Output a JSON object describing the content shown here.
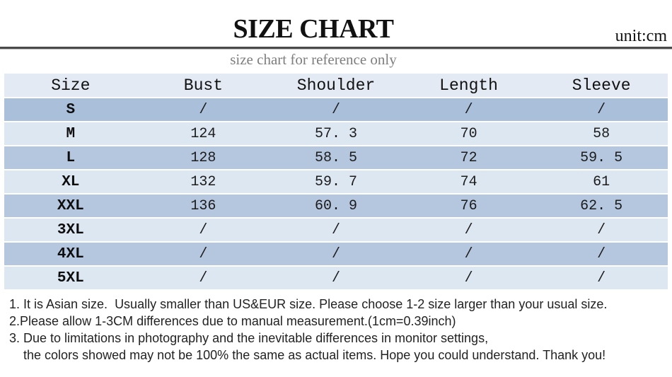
{
  "page": {
    "title": "SIZE CHART",
    "unit_label": "unit:cm",
    "subtitle": "size chart for reference only"
  },
  "chart_data": {
    "type": "table",
    "title": "SIZE CHART",
    "unit": "cm",
    "columns": [
      "Size",
      "Bust",
      "Shoulder",
      "Length",
      "Sleeve"
    ],
    "rows": [
      {
        "size": "S",
        "values": [
          "/",
          "/",
          "/",
          "/"
        ]
      },
      {
        "size": "M",
        "values": [
          "124",
          "57. 3",
          "70",
          "58"
        ]
      },
      {
        "size": "L",
        "values": [
          "128",
          "58. 5",
          "72",
          "59. 5"
        ]
      },
      {
        "size": "XL",
        "values": [
          "132",
          "59. 7",
          "74",
          "61"
        ]
      },
      {
        "size": "XXL",
        "values": [
          "136",
          "60. 9",
          "76",
          "62. 5"
        ]
      },
      {
        "size": "3XL",
        "values": [
          "/",
          "/",
          "/",
          "/"
        ]
      },
      {
        "size": "4XL",
        "values": [
          "/",
          "/",
          "/",
          "/"
        ]
      },
      {
        "size": "5XL",
        "values": [
          "/",
          "/",
          "/",
          "/"
        ]
      }
    ]
  },
  "notes": [
    "1. It is Asian size.  Usually smaller than US&EUR size. Please choose 1-2 size larger than your usual size.",
    "2.Please allow 1-3CM differences due to manual measurement.(1cm=0.39inch)",
    "3. Due to limitations in photography and the inevitable differences in monitor settings,",
    "    the colors showed may not be 100% the same as actual items. Hope you could understand. Thank you!"
  ],
  "colors": {
    "header_row": "#e3eaf3",
    "row_first": "#aabfda",
    "row_medium": "#b5c7df",
    "row_light": "#dde7f2",
    "divider": "#4a4a4a",
    "subtitle_text": "#7e7e7e"
  }
}
